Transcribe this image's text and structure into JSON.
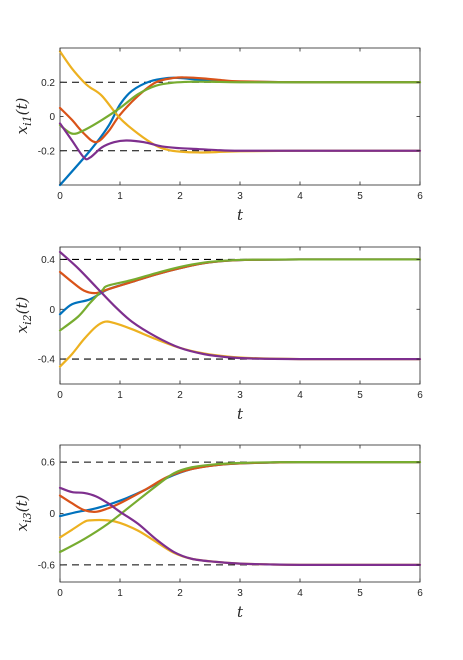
{
  "chart_data": [
    {
      "type": "line",
      "title": "",
      "xlabel": "t",
      "ylabel": "x_{i1}(t)",
      "ylabel_parts": {
        "var": "x",
        "sub": "i1",
        "suffix": "(t)"
      },
      "xlim": [
        0,
        6
      ],
      "ylim": [
        -0.4,
        0.4
      ],
      "xticks": [
        0,
        1,
        2,
        3,
        4,
        5,
        6
      ],
      "xtick_labels": [
        "0",
        "1",
        "2",
        "3",
        "4",
        "5",
        "6"
      ],
      "yticks": [
        -0.2,
        0,
        0.2
      ],
      "ytick_labels": [
        "-0.2",
        "0",
        "0.2"
      ],
      "grid": false,
      "reference_lines": [
        0.2,
        -0.2
      ],
      "series": [
        {
          "color": "#0072BD",
          "x": [
            0,
            0.5,
            0.8,
            1.0,
            1.2,
            1.5,
            1.8,
            2.0,
            2.3,
            2.6,
            3,
            4,
            5,
            6
          ],
          "y": [
            -0.4,
            -0.2,
            -0.06,
            0.07,
            0.15,
            0.205,
            0.225,
            0.225,
            0.215,
            0.208,
            0.203,
            0.2,
            0.2,
            0.2
          ]
        },
        {
          "color": "#D95319",
          "x": [
            0,
            0.2,
            0.4,
            0.6,
            0.8,
            1.0,
            1.3,
            1.6,
            1.9,
            2.1,
            2.4,
            2.7,
            3,
            4,
            5,
            6
          ],
          "y": [
            0.05,
            -0.02,
            -0.1,
            -0.15,
            -0.09,
            0.01,
            0.12,
            0.2,
            0.225,
            0.228,
            0.222,
            0.212,
            0.205,
            0.2,
            0.2,
            0.2
          ]
        },
        {
          "color": "#EDB120",
          "x": [
            0,
            0.2,
            0.4,
            0.5,
            0.7,
            1.0,
            1.3,
            1.6,
            1.8,
            2.0,
            2.3,
            2.6,
            3,
            4,
            5,
            6
          ],
          "y": [
            0.38,
            0.28,
            0.2,
            0.17,
            0.12,
            -0.01,
            -0.1,
            -0.17,
            -0.195,
            -0.205,
            -0.21,
            -0.208,
            -0.203,
            -0.2,
            -0.2,
            -0.2
          ]
        },
        {
          "color": "#77AC30",
          "x": [
            0,
            0.2,
            0.4,
            0.7,
            1.0,
            1.3,
            1.6,
            1.9,
            2.2,
            2.5,
            3,
            4,
            5,
            6
          ],
          "y": [
            -0.05,
            -0.1,
            -0.08,
            -0.02,
            0.05,
            0.13,
            0.18,
            0.198,
            0.203,
            0.203,
            0.2,
            0.2,
            0.2,
            0.2
          ]
        },
        {
          "color": "#7E2F8E",
          "x": [
            0,
            0.2,
            0.4,
            0.5,
            0.7,
            0.9,
            1.1,
            1.4,
            1.7,
            2.0,
            2.3,
            2.6,
            3,
            4,
            5,
            6
          ],
          "y": [
            -0.04,
            -0.14,
            -0.24,
            -0.24,
            -0.18,
            -0.15,
            -0.14,
            -0.15,
            -0.175,
            -0.185,
            -0.19,
            -0.196,
            -0.2,
            -0.2,
            -0.2,
            -0.2
          ]
        }
      ]
    },
    {
      "type": "line",
      "title": "",
      "xlabel": "t",
      "ylabel": "x_{i2}(t)",
      "ylabel_parts": {
        "var": "x",
        "sub": "i2",
        "suffix": "(t)"
      },
      "xlim": [
        0,
        6
      ],
      "ylim": [
        -0.6,
        0.5
      ],
      "xticks": [
        0,
        1,
        2,
        3,
        4,
        5,
        6
      ],
      "xtick_labels": [
        "0",
        "1",
        "2",
        "3",
        "4",
        "5",
        "6"
      ],
      "yticks": [
        -0.4,
        0,
        0.4
      ],
      "ytick_labels": [
        "-0.4",
        "0",
        "0.4"
      ],
      "grid": false,
      "reference_lines": [
        0.4,
        -0.4
      ],
      "series": [
        {
          "color": "#0072BD",
          "x": [
            0,
            0.2,
            0.5,
            0.8,
            1.2,
            1.6,
            2.0,
            2.4,
            2.8,
            3.2,
            4,
            5,
            6
          ],
          "y": [
            -0.04,
            0.04,
            0.08,
            0.16,
            0.22,
            0.28,
            0.33,
            0.37,
            0.39,
            0.397,
            0.4,
            0.4,
            0.4
          ]
        },
        {
          "color": "#D95319",
          "x": [
            0,
            0.2,
            0.4,
            0.6,
            0.8,
            1.2,
            1.6,
            2.0,
            2.4,
            2.8,
            3.2,
            4,
            5,
            6
          ],
          "y": [
            0.3,
            0.22,
            0.15,
            0.13,
            0.16,
            0.22,
            0.28,
            0.33,
            0.37,
            0.39,
            0.397,
            0.4,
            0.4,
            0.4
          ]
        },
        {
          "color": "#EDB120",
          "x": [
            0,
            0.2,
            0.4,
            0.6,
            0.75,
            0.9,
            1.2,
            1.6,
            2.0,
            2.4,
            2.8,
            3.2,
            4,
            5,
            6
          ],
          "y": [
            -0.46,
            -0.36,
            -0.24,
            -0.14,
            -0.1,
            -0.11,
            -0.16,
            -0.24,
            -0.31,
            -0.355,
            -0.38,
            -0.392,
            -0.4,
            -0.4,
            -0.4
          ]
        },
        {
          "color": "#77AC30",
          "x": [
            0,
            0.3,
            0.5,
            0.7,
            0.8,
            1.2,
            1.6,
            2.0,
            2.4,
            2.8,
            3.2,
            4,
            5,
            6
          ],
          "y": [
            -0.17,
            -0.06,
            0.05,
            0.15,
            0.19,
            0.235,
            0.29,
            0.34,
            0.375,
            0.392,
            0.398,
            0.4,
            0.4,
            0.4
          ]
        },
        {
          "color": "#7E2F8E",
          "x": [
            0,
            0.3,
            0.6,
            0.9,
            1.2,
            1.6,
            2.0,
            2.4,
            2.8,
            3.2,
            4,
            5,
            6
          ],
          "y": [
            0.46,
            0.33,
            0.18,
            0.03,
            -0.1,
            -0.22,
            -0.31,
            -0.36,
            -0.385,
            -0.395,
            -0.4,
            -0.4,
            -0.4
          ]
        }
      ]
    },
    {
      "type": "line",
      "title": "",
      "xlabel": "t",
      "ylabel": "x_{i3}(t)",
      "ylabel_parts": {
        "var": "x",
        "sub": "i3",
        "suffix": "(t)"
      },
      "xlim": [
        0,
        6
      ],
      "ylim": [
        -0.8,
        0.8
      ],
      "xticks": [
        0,
        1,
        2,
        3,
        4,
        5,
        6
      ],
      "xtick_labels": [
        "0",
        "1",
        "2",
        "3",
        "4",
        "5",
        "6"
      ],
      "yticks": [
        -0.6,
        0,
        0.6
      ],
      "ytick_labels": [
        "-0.6",
        "0",
        "0.6"
      ],
      "grid": false,
      "reference_lines": [
        0.6,
        -0.6
      ],
      "series": [
        {
          "color": "#0072BD",
          "x": [
            0,
            0.3,
            0.6,
            1.0,
            1.4,
            1.8,
            2.2,
            2.6,
            3.0,
            3.5,
            4,
            5,
            6
          ],
          "y": [
            -0.03,
            0.02,
            0.06,
            0.15,
            0.27,
            0.42,
            0.52,
            0.565,
            0.585,
            0.595,
            0.6,
            0.6,
            0.6
          ]
        },
        {
          "color": "#D95319",
          "x": [
            0,
            0.2,
            0.4,
            0.6,
            0.8,
            1.0,
            1.4,
            1.8,
            2.2,
            2.6,
            3.0,
            3.5,
            4,
            5,
            6
          ],
          "y": [
            0.21,
            0.12,
            0.04,
            0.02,
            0.06,
            0.12,
            0.27,
            0.43,
            0.52,
            0.565,
            0.585,
            0.595,
            0.6,
            0.6,
            0.6
          ]
        },
        {
          "color": "#EDB120",
          "x": [
            0,
            0.2,
            0.4,
            0.5,
            0.8,
            1.0,
            1.3,
            1.6,
            1.9,
            2.2,
            2.6,
            3.0,
            3.5,
            4,
            5,
            6
          ],
          "y": [
            -0.28,
            -0.19,
            -0.1,
            -0.08,
            -0.08,
            -0.11,
            -0.2,
            -0.33,
            -0.46,
            -0.53,
            -0.565,
            -0.585,
            -0.595,
            -0.6,
            -0.6,
            -0.6
          ]
        },
        {
          "color": "#77AC30",
          "x": [
            0,
            0.4,
            0.8,
            1.2,
            1.6,
            1.9,
            2.2,
            2.6,
            3.0,
            3.5,
            4,
            5,
            6
          ],
          "y": [
            -0.45,
            -0.3,
            -0.12,
            0.1,
            0.32,
            0.47,
            0.54,
            0.575,
            0.59,
            0.598,
            0.6,
            0.6,
            0.6
          ]
        },
        {
          "color": "#7E2F8E",
          "x": [
            0,
            0.2,
            0.4,
            0.6,
            0.8,
            1.0,
            1.3,
            1.6,
            1.9,
            2.2,
            2.6,
            3.0,
            3.5,
            4,
            5,
            6
          ],
          "y": [
            0.3,
            0.25,
            0.24,
            0.2,
            0.12,
            0.02,
            -0.12,
            -0.3,
            -0.45,
            -0.53,
            -0.565,
            -0.585,
            -0.595,
            -0.6,
            -0.6,
            -0.6
          ]
        }
      ]
    }
  ]
}
